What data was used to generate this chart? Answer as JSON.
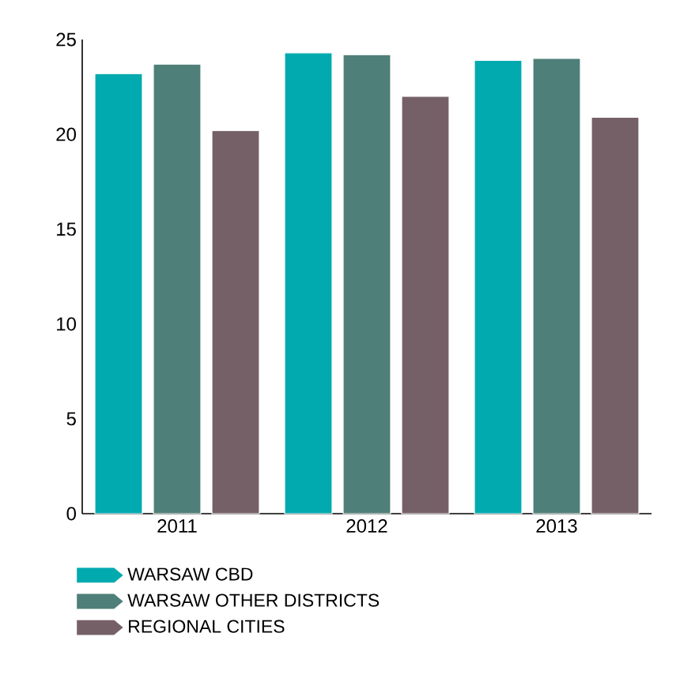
{
  "chart_data": {
    "type": "bar",
    "categories": [
      "2011",
      "2012",
      "2013"
    ],
    "series": [
      {
        "name": "WARSAW CBD",
        "color": "#00aaae",
        "values": [
          23.2,
          24.3,
          23.9
        ]
      },
      {
        "name": "WARSAW OTHER DISTRICTS",
        "color": "#4e7f78",
        "values": [
          23.7,
          24.2,
          24.0
        ]
      },
      {
        "name": "REGIONAL CITIES",
        "color": "#766068",
        "values": [
          20.2,
          22.0,
          20.9
        ]
      }
    ],
    "ylim": [
      0,
      25
    ],
    "yticks": [
      0,
      5,
      10,
      15,
      20,
      25
    ],
    "grid": false,
    "legend": "bottom"
  }
}
